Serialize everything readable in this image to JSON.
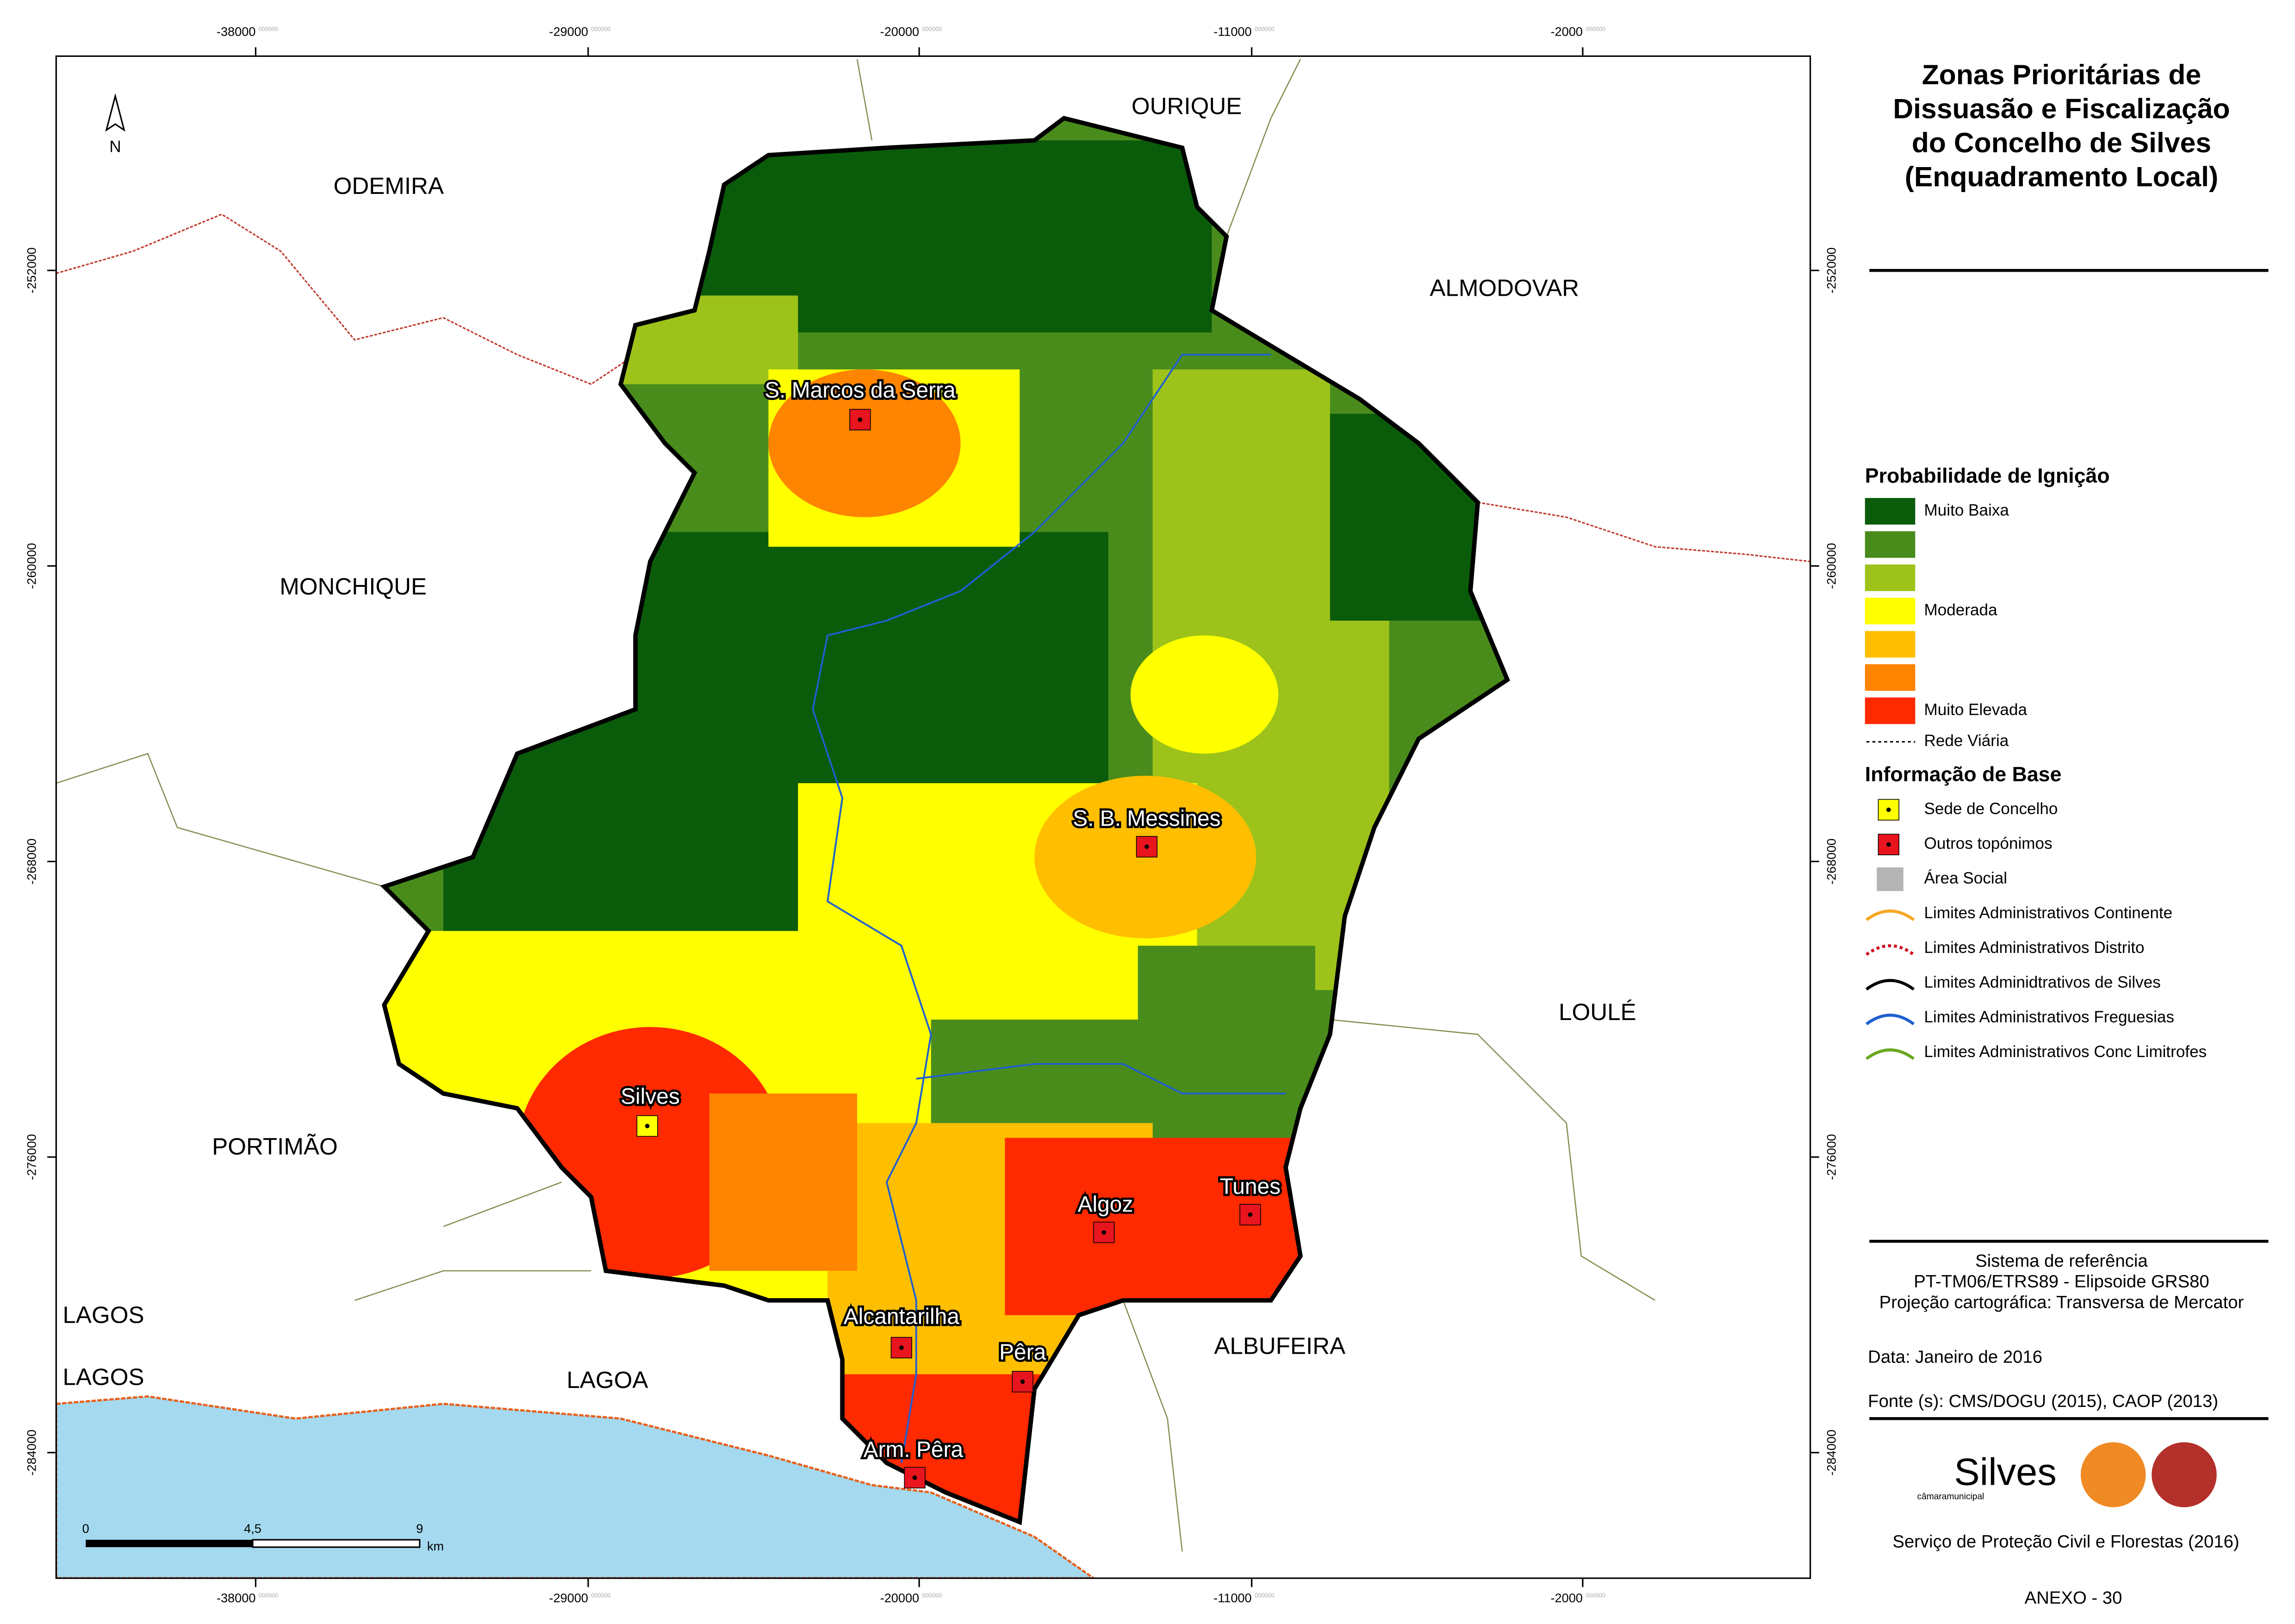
{
  "map": {
    "north": "N",
    "x_ticks": [
      "-38000",
      "-29000",
      "-20000",
      "-11000",
      "-2000"
    ],
    "y_ticks": [
      "-252000",
      "-260000",
      "-268000",
      "-276000",
      "-284000"
    ],
    "tick_suffix": "000000",
    "neighbours": [
      "OURIQUE",
      "ODEMIRA",
      "ALMODOVAR",
      "MONCHIQUE",
      "LOULÉ",
      "PORTIMÃO",
      "LAGOS",
      "LAGOS",
      "LAGOA",
      "ALBUFEIRA"
    ],
    "towns": [
      {
        "name": "S. Marcos da Serra",
        "color": "#e8141e"
      },
      {
        "name": "S. B. Messines",
        "color": "#e8141e"
      },
      {
        "name": "Silves",
        "color": "#ffff00"
      },
      {
        "name": "Tunes",
        "color": "#e8141e"
      },
      {
        "name": "Algoz",
        "color": "#e8141e"
      },
      {
        "name": "Alcantarilha",
        "color": "#e8141e"
      },
      {
        "name": "Pêra",
        "color": "#e8141e"
      },
      {
        "name": "Arm. Pêra",
        "color": "#e8141e"
      }
    ],
    "scale": [
      "0",
      "4,5",
      "9",
      "km"
    ]
  },
  "title": [
    "Zonas Prioritárias de",
    "Dissuasão e Fiscalização",
    "do Concelho de Silves",
    "(Enquadramento Local)"
  ],
  "legend": {
    "ignition_title": "Probabilidade de Ignição",
    "ignition": [
      {
        "color": "#0a5c0a",
        "label": "Muito Baixa"
      },
      {
        "color": "#4a8c1c"
      },
      {
        "color": "#9dc31a"
      },
      {
        "color": "#ffff00",
        "label": "Moderada"
      },
      {
        "color": "#ffbf00"
      },
      {
        "color": "#ff8400"
      },
      {
        "color": "#ff2a00",
        "label": "Muito Elevada"
      }
    ],
    "road": "Rede Viária",
    "base_title": "Informação de Base",
    "base": [
      {
        "label": "Sede de Concelho",
        "symbol": "point",
        "color": "#ffff00"
      },
      {
        "label": "Outros topónimos",
        "symbol": "point",
        "color": "#e8141e"
      },
      {
        "label": "Área Social",
        "symbol": "area",
        "color": "#b4b4b4"
      },
      {
        "label": "Limites Administrativos Continente",
        "symbol": "line",
        "color": "#f5a623"
      },
      {
        "label": "Limites Administrativos Distrito",
        "symbol": "dotted",
        "color": "#d0021b"
      },
      {
        "label": "Limites Adminidtrativos de Silves",
        "symbol": "line",
        "color": "#000000"
      },
      {
        "label": "Limites Administrativos Freguesias",
        "symbol": "line",
        "color": "#1f5fd0"
      },
      {
        "label": "Limites Administrativos Conc Limitrofes",
        "symbol": "line",
        "color": "#6aa820"
      }
    ]
  },
  "reference": [
    "Sistema de referência",
    "PT-TM06/ETRS89 - Elipsoide GRS80",
    "Projeção cartográfica: Transversa de Mercator"
  ],
  "date": "Data: Janeiro de 2016",
  "source": "Fonte (s): CMS/DOGU (2015), CAOP (2013)",
  "logo": "Silves",
  "logo_sub": "câmaramunicipal",
  "service": "Serviço de Proteção Civil e Florestas (2016)",
  "annex": "ANEXO - 30"
}
